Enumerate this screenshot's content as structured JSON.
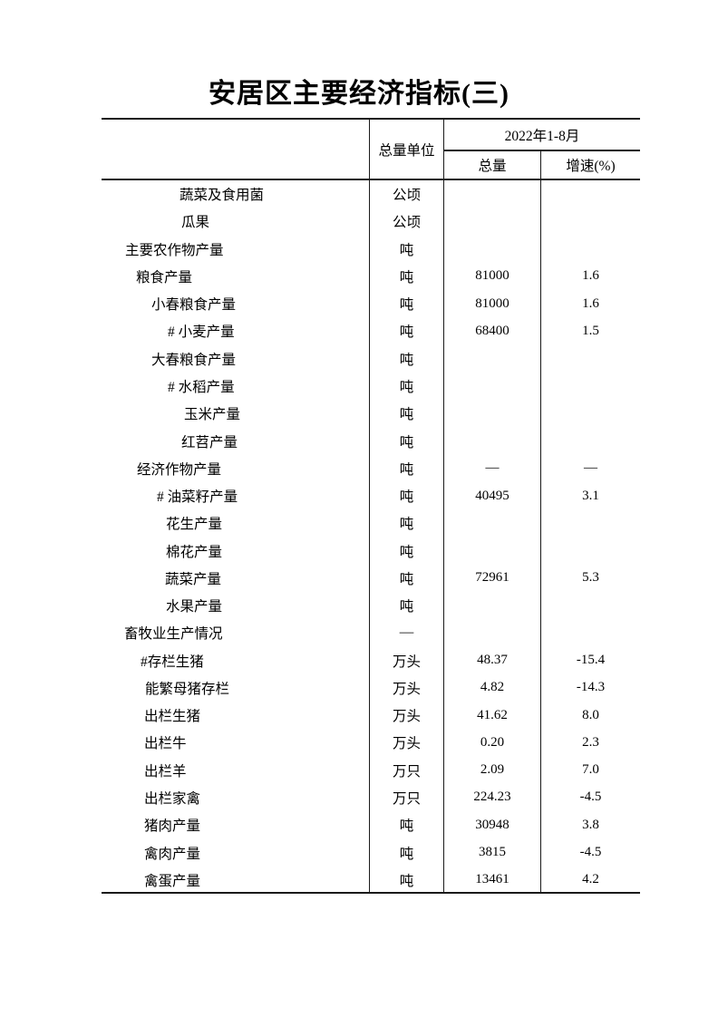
{
  "page": {
    "title": "安居区主要经济指标(三)"
  },
  "table": {
    "header": {
      "unit_col": "总量单位",
      "period": "2022年1-8月",
      "sub_total": "总量",
      "sub_growth": "增速(%)"
    },
    "rows": [
      {
        "label": "蔬菜及食用菌",
        "indent": 86,
        "unit": "公顷",
        "total": "",
        "growth": ""
      },
      {
        "label": "瓜果",
        "indent": 88,
        "unit": "公顷",
        "total": "",
        "growth": ""
      },
      {
        "label": "主要农作物产量",
        "indent": 26,
        "unit": "吨",
        "total": "",
        "growth": ""
      },
      {
        "label": "粮食产量",
        "indent": 38,
        "unit": "吨",
        "total": "81000",
        "growth": "1.6"
      },
      {
        "label": "小春粮食产量",
        "indent": 55,
        "unit": "吨",
        "total": "81000",
        "growth": "1.6"
      },
      {
        "label": "# 小麦产量",
        "indent": 73,
        "unit": "吨",
        "total": "68400",
        "growth": "1.5"
      },
      {
        "label": "大春粮食产量",
        "indent": 55,
        "unit": "吨",
        "total": "",
        "growth": ""
      },
      {
        "label": "# 水稻产量",
        "indent": 73,
        "unit": "吨",
        "total": "",
        "growth": ""
      },
      {
        "label": "玉米产量",
        "indent": 91,
        "unit": "吨",
        "total": "",
        "growth": ""
      },
      {
        "label": "红苕产量",
        "indent": 88,
        "unit": "吨",
        "total": "",
        "growth": ""
      },
      {
        "label": "经济作物产量",
        "indent": 39,
        "unit": "吨",
        "total": "—",
        "growth": "—"
      },
      {
        "label": "# 油菜籽产量",
        "indent": 61,
        "unit": "吨",
        "total": "40495",
        "growth": "3.1"
      },
      {
        "label": "花生产量",
        "indent": 71,
        "unit": "吨",
        "total": "",
        "growth": ""
      },
      {
        "label": "棉花产量",
        "indent": 71,
        "unit": "吨",
        "total": "",
        "growth": ""
      },
      {
        "label": "蔬菜产量",
        "indent": 70,
        "unit": "吨",
        "total": "72961",
        "growth": "5.3"
      },
      {
        "label": "水果产量",
        "indent": 71,
        "unit": "吨",
        "total": "",
        "growth": ""
      },
      {
        "label": "畜牧业生产情况",
        "indent": 25,
        "unit": "—",
        "total": "",
        "growth": ""
      },
      {
        "label": "#存栏生猪",
        "indent": 43,
        "unit": "万头",
        "total": "48.37",
        "growth": "-15.4"
      },
      {
        "label": "能繁母猪存栏",
        "indent": 48,
        "unit": "万头",
        "total": "4.82",
        "growth": "-14.3"
      },
      {
        "label": "出栏生猪",
        "indent": 47,
        "unit": "万头",
        "total": "41.62",
        "growth": "8.0"
      },
      {
        "label": "出栏牛",
        "indent": 47,
        "unit": "万头",
        "total": "0.20",
        "growth": "2.3"
      },
      {
        "label": "出栏羊",
        "indent": 47,
        "unit": "万只",
        "total": "2.09",
        "growth": "7.0"
      },
      {
        "label": "出栏家禽",
        "indent": 47,
        "unit": "万只",
        "total": "224.23",
        "growth": "-4.5"
      },
      {
        "label": "猪肉产量",
        "indent": 47,
        "unit": "吨",
        "total": "30948",
        "growth": "3.8"
      },
      {
        "label": "禽肉产量",
        "indent": 47,
        "unit": "吨",
        "total": "3815",
        "growth": "-4.5"
      },
      {
        "label": "禽蛋产量",
        "indent": 47,
        "unit": "吨",
        "total": "13461",
        "growth": "4.2"
      }
    ]
  }
}
